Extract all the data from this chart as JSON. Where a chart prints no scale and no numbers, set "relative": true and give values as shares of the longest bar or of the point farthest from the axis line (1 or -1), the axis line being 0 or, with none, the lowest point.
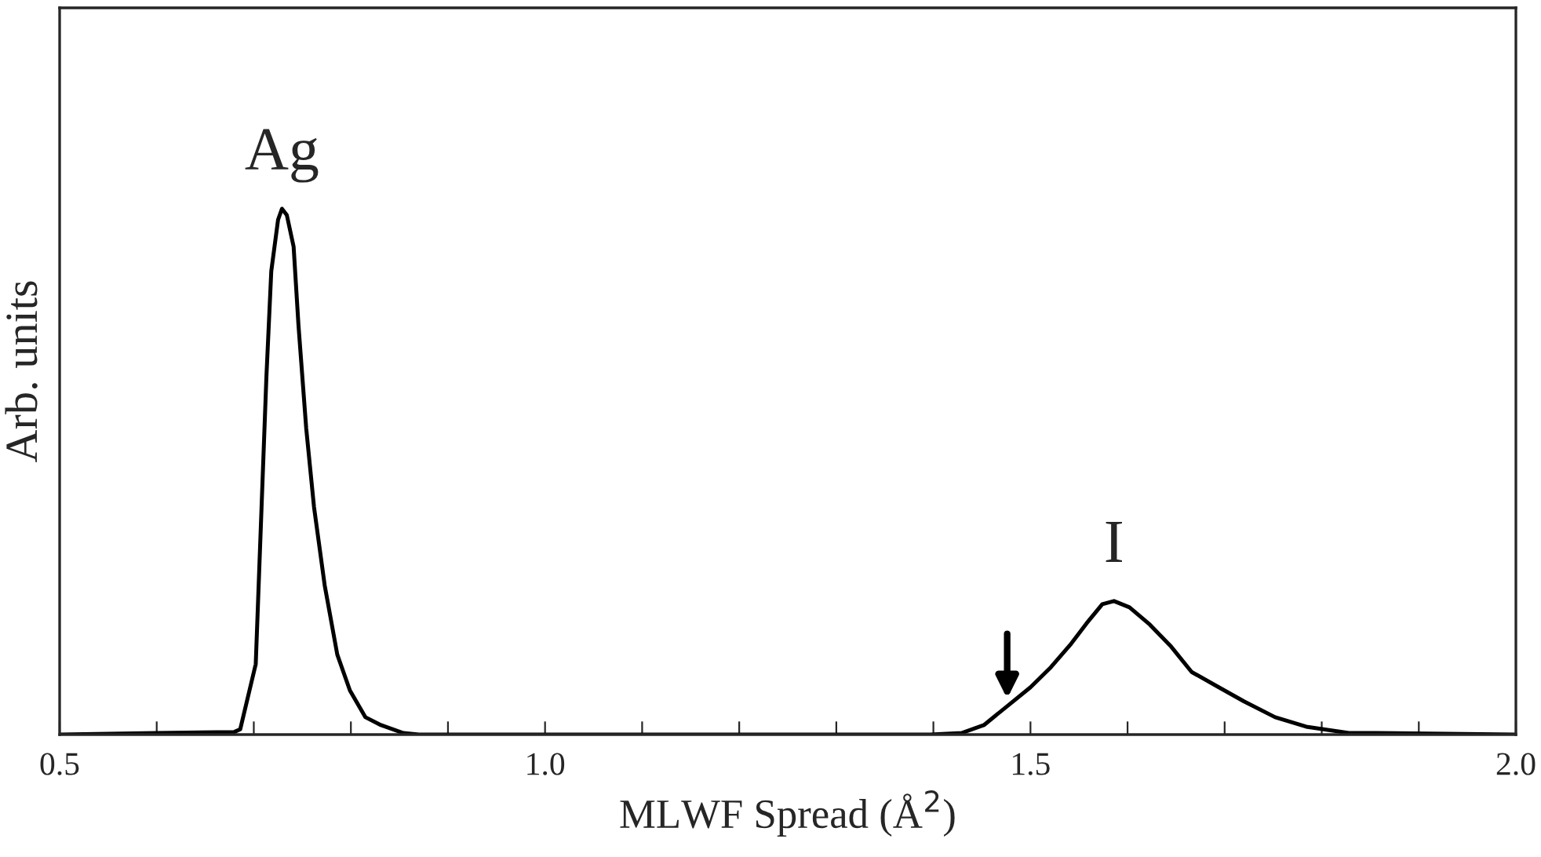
{
  "chart_data": {
    "type": "line",
    "relative": true,
    "xlabel": "MLWF Spread (Å$^{2}$)",
    "ylabel": "Arb. units",
    "xlim": [
      0.5,
      2.0
    ],
    "xticks": [
      {
        "value": 0.5,
        "label": "0.5"
      },
      {
        "value": 0.6,
        "label": null
      },
      {
        "value": 0.7,
        "label": null
      },
      {
        "value": 0.8,
        "label": null
      },
      {
        "value": 0.9,
        "label": null
      },
      {
        "value": 1.0,
        "label": "1.0"
      },
      {
        "value": 1.1,
        "label": null
      },
      {
        "value": 1.2,
        "label": null
      },
      {
        "value": 1.3,
        "label": null
      },
      {
        "value": 1.4,
        "label": null
      },
      {
        "value": 1.5,
        "label": "1.5"
      },
      {
        "value": 1.6,
        "label": null
      },
      {
        "value": 1.7,
        "label": null
      },
      {
        "value": 1.8,
        "label": null
      },
      {
        "value": 1.9,
        "label": null
      },
      {
        "value": 2.0,
        "label": "2.0"
      }
    ],
    "tick_labels": "x",
    "grid": false,
    "legend": false,
    "marker": "none",
    "line_style": "solid",
    "annotations": [
      {
        "text": "Ag",
        "x": 0.729,
        "y": 1.0
      },
      {
        "text": "I",
        "x": 1.586,
        "y": 0.254
      }
    ],
    "series": [
      {
        "color": "#000000",
        "x": [
          0.5,
          0.6,
          0.68,
          0.686,
          0.702,
          0.708,
          0.713,
          0.718,
          0.725,
          0.729,
          0.734,
          0.741,
          0.746,
          0.754,
          0.762,
          0.773,
          0.786,
          0.799,
          0.815,
          0.831,
          0.854,
          0.87,
          1.0,
          1.2,
          1.397,
          1.429,
          1.452,
          1.476,
          1.5,
          1.521,
          1.542,
          1.558,
          1.574,
          1.586,
          1.602,
          1.623,
          1.645,
          1.666,
          1.694,
          1.72,
          1.752,
          1.784,
          1.828,
          1.856,
          2.0
        ],
        "values": [
          0,
          0.003,
          0.005,
          0.01,
          0.134,
          0.433,
          0.681,
          0.881,
          0.979,
          1.0,
          0.988,
          0.928,
          0.779,
          0.582,
          0.433,
          0.284,
          0.152,
          0.084,
          0.033,
          0.018,
          0.003,
          0,
          0,
          0,
          0,
          0.003,
          0.018,
          0.054,
          0.09,
          0.128,
          0.173,
          0.212,
          0.248,
          0.254,
          0.242,
          0.209,
          0.167,
          0.119,
          0.09,
          0.063,
          0.033,
          0.015,
          0.003,
          0.003,
          0
        ]
      }
    ]
  }
}
